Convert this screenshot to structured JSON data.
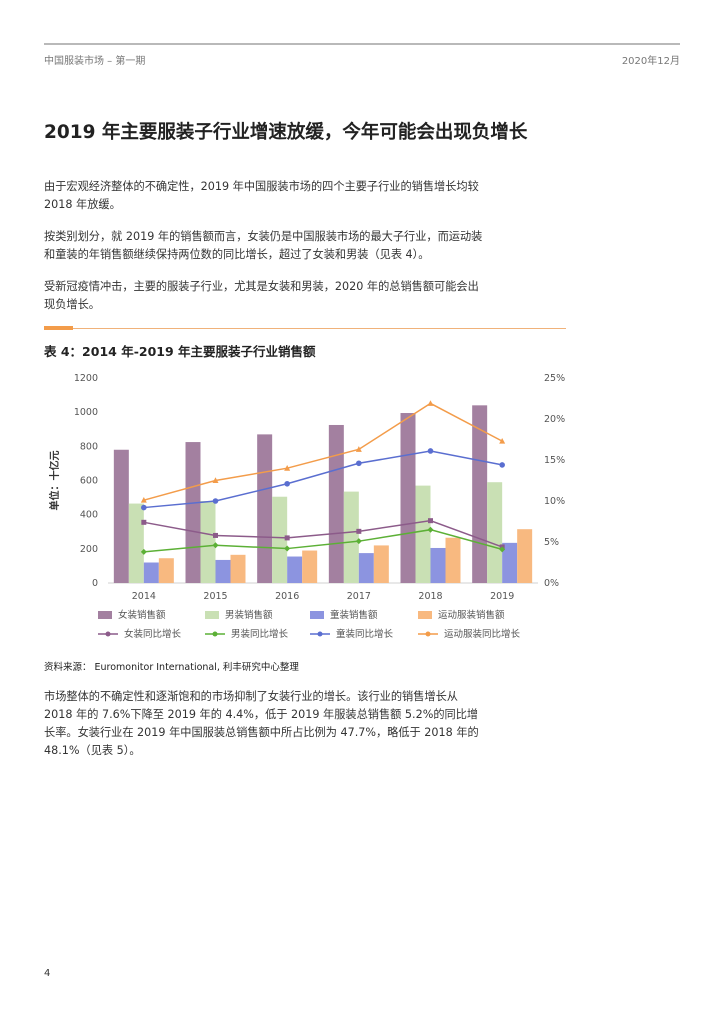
{
  "header": {
    "left": "中国服装市场 – 第一期",
    "right": "2020年12月"
  },
  "title": "2019 年主要服装子行业增速放缓，今年可能会出现负增长",
  "paragraphs": [
    "由于宏观经济整体的不确定性，2019 年中国服装市场的四个主要子行业的销售增长均较 2018 年放缓。",
    "按类别划分，就 2019 年的销售额而言，女装仍是中国服装市场的最大子行业，而运动装和童装的年销售额继续保持两位数的同比增长，超过了女装和男装（见表 4）。",
    "受新冠疫情冲击，主要的服装子行业，尤其是女装和男装，2020 年的总销售额可能会出现负增长。"
  ],
  "chart_title": "表 4：2014 年-2019 年主要服装子行业销售额",
  "source": "资料来源： Euromonitor International, 利丰研究中心整理",
  "paragraph_after": "市场整体的不确定性和逐渐饱和的市场抑制了女装行业的增长。该行业的销售增长从 2018 年的 7.6%下降至 2019 年的 4.4%，低于 2019 年服装总销售额 5.2%的同比增长率。女装行业在 2019 年中国服装总销售额中所占比例为 47.7%，略低于 2018 年的 48.1%（见表 5）。",
  "page_number": "4",
  "chart_data": {
    "type": "bar",
    "categories": [
      "2014",
      "2015",
      "2016",
      "2017",
      "2018",
      "2019"
    ],
    "ylabel": "单位：十亿元",
    "ylim": [
      0,
      1200
    ],
    "yticks": [
      "0",
      "200",
      "400",
      "600",
      "800",
      "1000",
      "1200"
    ],
    "y2lim": [
      0,
      25
    ],
    "y2ticks": [
      "0%",
      "5%",
      "10%",
      "15%",
      "20%",
      "25%"
    ],
    "legend_position": "bottom",
    "grid": false,
    "series": [
      {
        "name": "女装销售额",
        "kind": "bar",
        "color": "#a380a0",
        "values": [
          780,
          825,
          870,
          925,
          995,
          1040
        ]
      },
      {
        "name": "男装销售额",
        "kind": "bar",
        "color": "#c9e0b4",
        "values": [
          465,
          480,
          505,
          535,
          570,
          590
        ]
      },
      {
        "name": "童装销售额",
        "kind": "bar",
        "color": "#8c94e0",
        "values": [
          120,
          135,
          155,
          175,
          205,
          235
        ]
      },
      {
        "name": "运动服装销售额",
        "kind": "bar",
        "color": "#f8b980",
        "values": [
          145,
          165,
          190,
          220,
          265,
          315
        ]
      },
      {
        "name": "女装同比增长",
        "kind": "line",
        "axis": "right",
        "color": "#8c5b8a",
        "values": [
          7.4,
          5.8,
          5.5,
          6.3,
          7.6,
          4.4
        ]
      },
      {
        "name": "男装同比增长",
        "kind": "line",
        "axis": "right",
        "color": "#5cb036",
        "values": [
          3.8,
          4.6,
          4.2,
          5.1,
          6.5,
          4.1
        ]
      },
      {
        "name": "童装同比增长",
        "kind": "line",
        "axis": "right",
        "color": "#5a6ed0",
        "values": [
          9.2,
          10.0,
          12.1,
          14.6,
          16.1,
          14.4
        ]
      },
      {
        "name": "运动服装同比增长",
        "kind": "line",
        "axis": "right",
        "color": "#f39c4a",
        "values": [
          10.1,
          12.5,
          14.0,
          16.3,
          21.9,
          17.3
        ]
      }
    ]
  }
}
